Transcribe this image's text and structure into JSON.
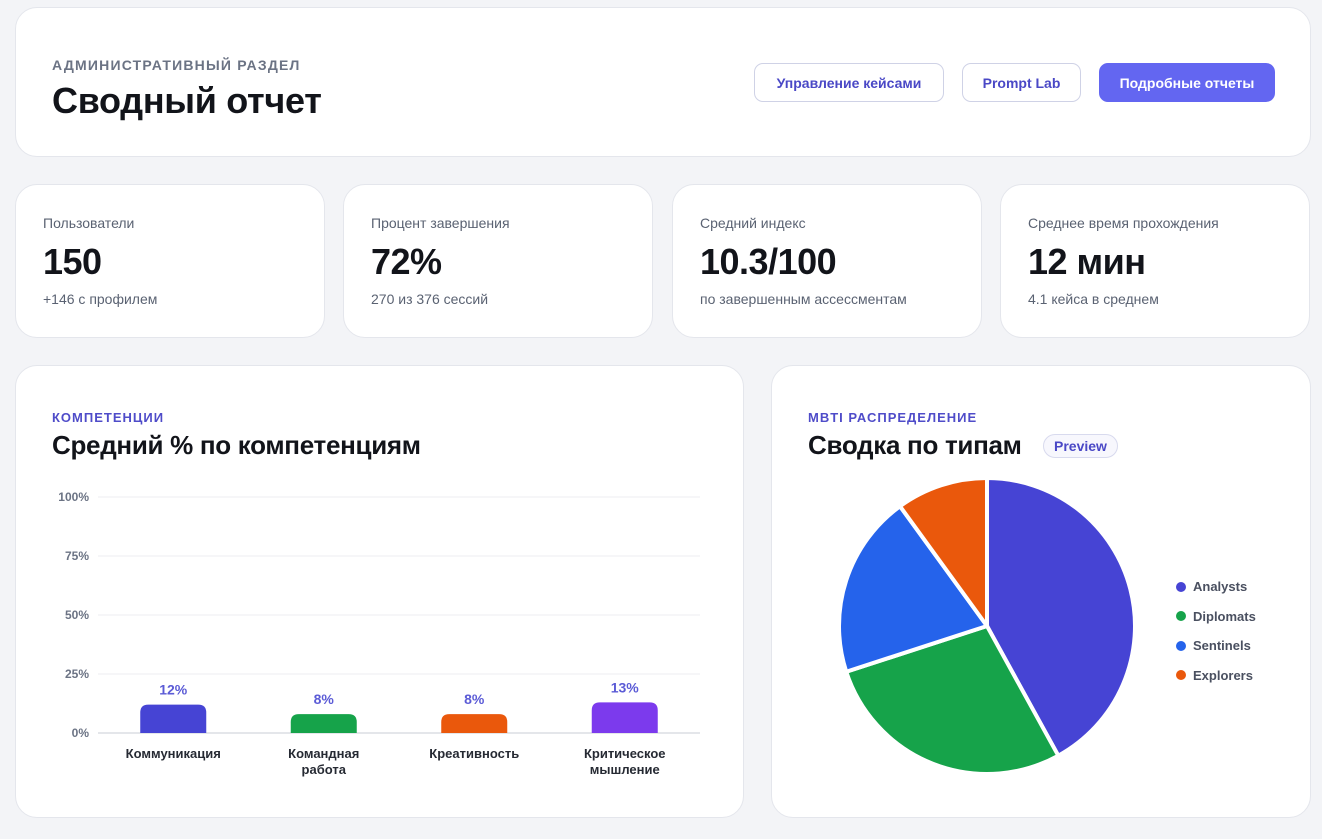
{
  "header": {
    "eyebrow": "АДМИНИСТРАТИВНЫЙ РАЗДЕЛ",
    "title": "Сводный отчет",
    "buttons": {
      "cases": "Управление кейсами",
      "prompt_lab": "Prompt Lab",
      "reports": "Подробные отчеты"
    }
  },
  "stats": [
    {
      "label": "Пользователи",
      "value": "150",
      "sub": "+146 с профилем"
    },
    {
      "label": "Процент завершения",
      "value": "72%",
      "sub": "270 из 376 сессий"
    },
    {
      "label": "Средний индекс",
      "value": "10.3/100",
      "sub": "по завершенным ассессментам"
    },
    {
      "label": "Среднее время прохождения",
      "value": "12 мин",
      "sub": "4.1 кейса в среднем"
    }
  ],
  "competencies": {
    "eyebrow": "КОМПЕТЕНЦИИ",
    "title": "Средний % по компетенциям"
  },
  "mbti": {
    "eyebrow": "MBTI РАСПРЕДЕЛЕНИЕ",
    "title": "Сводка по типам",
    "badge": "Preview"
  },
  "chart_data": [
    {
      "type": "bar",
      "categories": [
        [
          "Коммуникация"
        ],
        [
          "Командная",
          "работа"
        ],
        [
          "Креативность"
        ],
        [
          "Критическое",
          "мышление"
        ]
      ],
      "values": [
        12,
        8,
        8,
        13
      ],
      "value_labels": [
        "12%",
        "8%",
        "8%",
        "13%"
      ],
      "colors": [
        "#4644d4",
        "#16a34a",
        "#ea580c",
        "#7c3aed"
      ],
      "ylim": [
        0,
        100
      ],
      "yticks": [
        "0%",
        "25%",
        "50%",
        "75%",
        "100%"
      ],
      "grid": true,
      "title": "Средний % по компетенциям"
    },
    {
      "type": "pie",
      "labels": [
        "Analysts",
        "Diplomats",
        "Sentinels",
        "Explorers"
      ],
      "values": [
        42,
        28,
        20,
        10
      ],
      "colors": [
        "#4644d4",
        "#16a34a",
        "#2563eb",
        "#ea580c"
      ],
      "legend": "right",
      "title": "Сводка по типам"
    }
  ]
}
